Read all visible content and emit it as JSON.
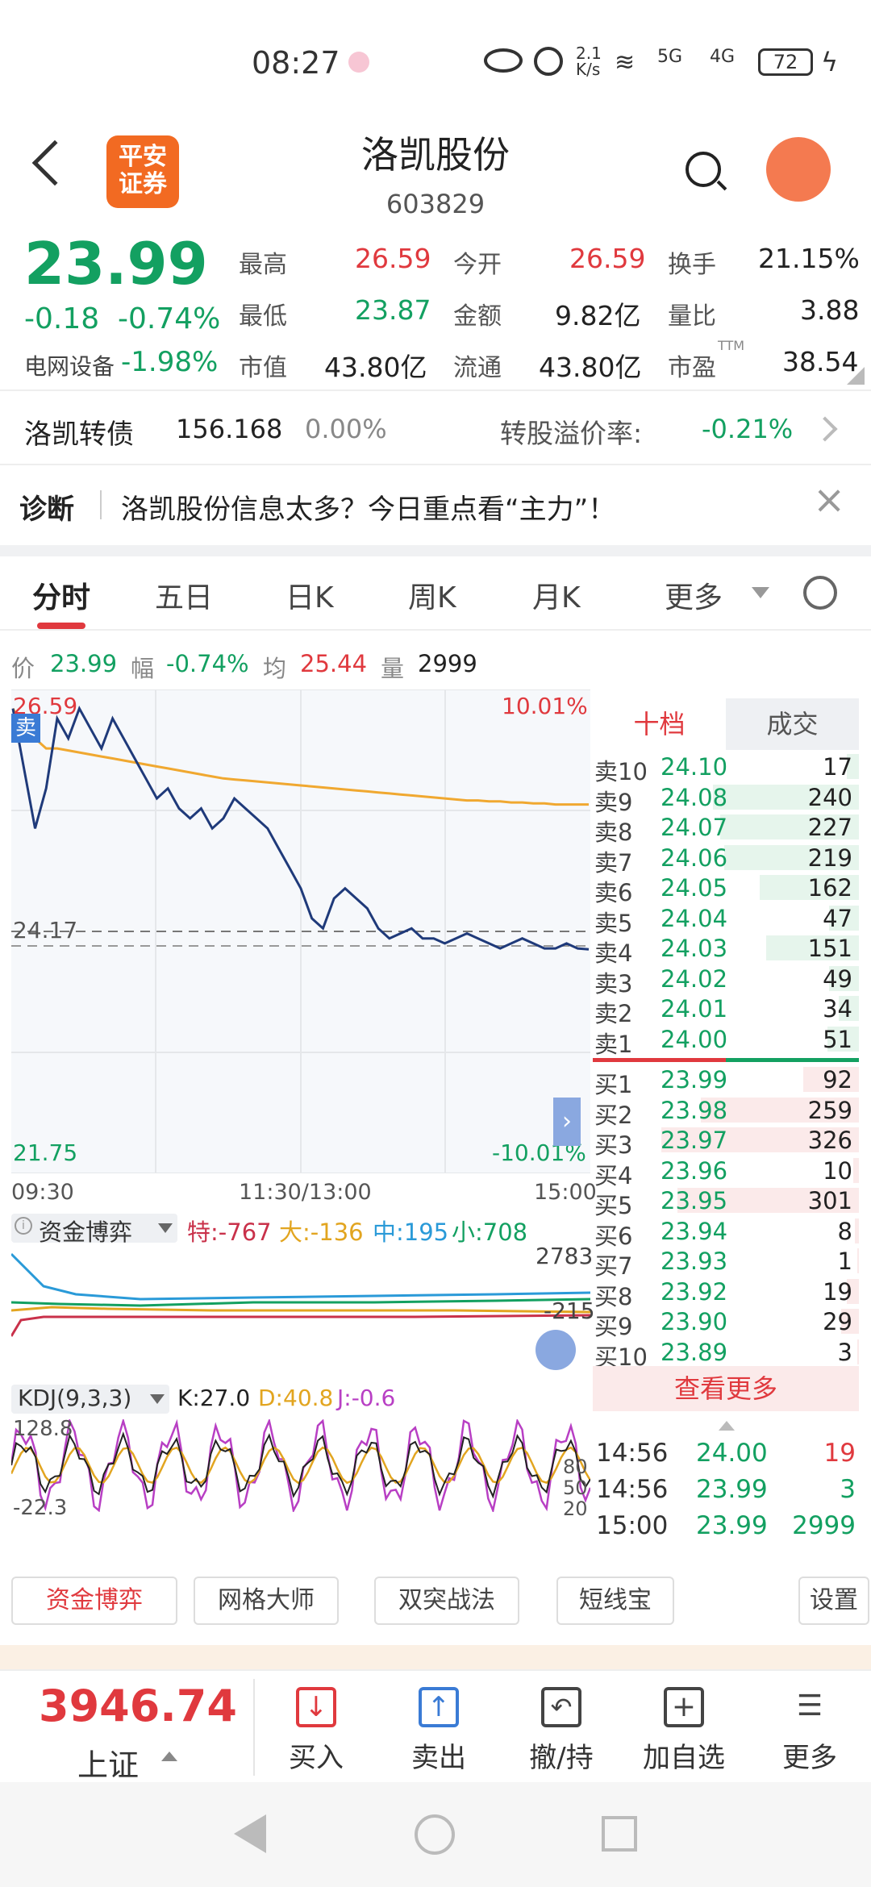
{
  "status_bar": {
    "time": "08:27",
    "net_speed_top": "2.1",
    "net_speed_bottom": "K/s",
    "battery": "72",
    "signal_a": "5G",
    "signal_b": "4G"
  },
  "header": {
    "broker_logo_text_1": "平安",
    "broker_logo_text_2": "证券",
    "stock_name": "洛凯股份",
    "stock_code": "603829"
  },
  "quote": {
    "price": "23.99",
    "change": "-0.18",
    "change_pct": "-0.74%",
    "sector_name": "电网设备",
    "sector_pct": "-1.98%",
    "high_label": "最高",
    "high": "26.59",
    "open_label": "今开",
    "open": "26.59",
    "turnover_label": "换手",
    "turnover": "21.15%",
    "low_label": "最低",
    "low": "23.87",
    "amount_label": "金额",
    "amount": "9.82亿",
    "vol_ratio_label": "量比",
    "vol_ratio": "3.88",
    "mktcap_label": "市值",
    "mktcap": "43.80亿",
    "float_label": "流通",
    "float_cap": "43.80亿",
    "pe_label": "市盈",
    "pe_sup": "TTM",
    "pe": "38.54"
  },
  "bond": {
    "name": "洛凯转债",
    "price": "156.168",
    "pct": "0.00%",
    "premium_label": "转股溢价率:",
    "premium": "-0.21%"
  },
  "diagnosis": {
    "label": "诊断",
    "text": "洛凯股份信息太多？今日重点看“主力”！"
  },
  "tabs": [
    {
      "label": "分时"
    },
    {
      "label": "五日"
    },
    {
      "label": "日K"
    },
    {
      "label": "周K"
    },
    {
      "label": "月K"
    },
    {
      "label": "更多"
    }
  ],
  "info_bar": {
    "price_label": "价",
    "price": "23.99",
    "range_label": "幅",
    "range": "-0.74%",
    "avg_label": "均",
    "avg": "25.44",
    "vol_label": "量",
    "vol": "2999"
  },
  "chart_data": {
    "type": "line",
    "y_top": "26.59",
    "y_bottom": "21.75",
    "y_ref": "24.17",
    "pct_top": "10.01%",
    "pct_bottom": "-10.01%",
    "x_ticks": [
      "09:30",
      "11:30/13:00",
      "15:00"
    ],
    "sell_tag": "卖",
    "ylim": [
      21.75,
      26.59
    ],
    "price_series": [
      26.4,
      25.8,
      25.2,
      25.6,
      26.3,
      26.1,
      26.4,
      26.2,
      26.0,
      26.3,
      26.1,
      25.9,
      25.7,
      25.5,
      25.6,
      25.4,
      25.3,
      25.4,
      25.2,
      25.3,
      25.5,
      25.4,
      25.3,
      25.2,
      25.0,
      24.8,
      24.6,
      24.3,
      24.2,
      24.5,
      24.6,
      24.5,
      24.4,
      24.2,
      24.1,
      24.15,
      24.2,
      24.1,
      24.1,
      24.05,
      24.1,
      24.15,
      24.1,
      24.05,
      24.0,
      24.05,
      24.1,
      24.05,
      24.0,
      24.0,
      24.05,
      24.0,
      23.99
    ],
    "avg_series": [
      26.4,
      26.2,
      26.1,
      26.0,
      26.0,
      25.98,
      25.96,
      25.94,
      25.92,
      25.9,
      25.88,
      25.86,
      25.84,
      25.82,
      25.8,
      25.78,
      25.76,
      25.74,
      25.72,
      25.7,
      25.69,
      25.68,
      25.67,
      25.66,
      25.65,
      25.64,
      25.63,
      25.62,
      25.61,
      25.6,
      25.59,
      25.58,
      25.57,
      25.56,
      25.55,
      25.54,
      25.53,
      25.52,
      25.51,
      25.5,
      25.49,
      25.48,
      25.48,
      25.47,
      25.47,
      25.46,
      25.46,
      25.45,
      25.45,
      25.44,
      25.44,
      25.44,
      25.44
    ]
  },
  "fund_panel": {
    "title": "资金博弈",
    "special_label": "特:",
    "special": "-767",
    "big_label": "大:",
    "big": "-136",
    "mid_label": "中:",
    "mid": "195",
    "small_label": "小:",
    "small": "708",
    "axis_top": "2783",
    "axis_bottom": "-215"
  },
  "kdj_panel": {
    "title": "KDJ(9,3,3)",
    "k_label": "K:",
    "k": "27.0",
    "d_label": "D:",
    "d": "40.8",
    "j_label": "J:",
    "j": "-0.6",
    "axis_top": "128.8",
    "axis_bottom": "-22.3",
    "r80": "80",
    "r50": "50",
    "r20": "20"
  },
  "order_book": {
    "tab_active": "十档",
    "tab_inactive": "成交",
    "asks": [
      {
        "label": "卖10",
        "price": "24.10",
        "vol": "17",
        "bar": 0.06
      },
      {
        "label": "卖9",
        "price": "24.08",
        "vol": "240",
        "bar": 0.74
      },
      {
        "label": "卖8",
        "price": "24.07",
        "vol": "227",
        "bar": 0.7
      },
      {
        "label": "卖7",
        "price": "24.06",
        "vol": "219",
        "bar": 0.68
      },
      {
        "label": "卖6",
        "price": "24.05",
        "vol": "162",
        "bar": 0.5
      },
      {
        "label": "卖5",
        "price": "24.04",
        "vol": "47",
        "bar": 0.15
      },
      {
        "label": "卖4",
        "price": "24.03",
        "vol": "151",
        "bar": 0.47
      },
      {
        "label": "卖3",
        "price": "24.02",
        "vol": "49",
        "bar": 0.15
      },
      {
        "label": "卖2",
        "price": "24.01",
        "vol": "34",
        "bar": 0.1
      },
      {
        "label": "卖1",
        "price": "24.00",
        "vol": "51",
        "bar": 0.16
      }
    ],
    "bids": [
      {
        "label": "买1",
        "price": "23.99",
        "vol": "92",
        "bar": 0.28
      },
      {
        "label": "买2",
        "price": "23.98",
        "vol": "259",
        "bar": 0.8
      },
      {
        "label": "买3",
        "price": "23.97",
        "vol": "326",
        "bar": 1.0
      },
      {
        "label": "买4",
        "price": "23.96",
        "vol": "10",
        "bar": 0.03
      },
      {
        "label": "买5",
        "price": "23.95",
        "vol": "301",
        "bar": 0.92
      },
      {
        "label": "买6",
        "price": "23.94",
        "vol": "8",
        "bar": 0.02
      },
      {
        "label": "买7",
        "price": "23.93",
        "vol": "1",
        "bar": 0.01
      },
      {
        "label": "买8",
        "price": "23.92",
        "vol": "19",
        "bar": 0.06
      },
      {
        "label": "买9",
        "price": "23.90",
        "vol": "29",
        "bar": 0.09
      },
      {
        "label": "买10",
        "price": "23.89",
        "vol": "3",
        "bar": 0.01
      }
    ],
    "more_label": "查看更多",
    "trades": [
      {
        "time": "14:56",
        "price": "24.00",
        "vol": "19"
      },
      {
        "time": "14:56",
        "price": "23.99",
        "vol": "3"
      },
      {
        "time": "15:00",
        "price": "23.99",
        "vol": "2999"
      }
    ]
  },
  "toolbar": [
    {
      "label": "资金博弈"
    },
    {
      "label": "网格大师"
    },
    {
      "label": "双突战法"
    },
    {
      "label": "短线宝"
    },
    {
      "label": "设置"
    }
  ],
  "bottom_bar": {
    "index_value": "3946.74",
    "index_name": "上证",
    "buy": "买入",
    "sell": "卖出",
    "cancel": "撤/持",
    "add": "加自选",
    "more": "更多"
  },
  "colors": {
    "up": "#e0393e",
    "down": "#13a061",
    "price_line": "#1f3a7a",
    "avg_line": "#f0a830"
  }
}
